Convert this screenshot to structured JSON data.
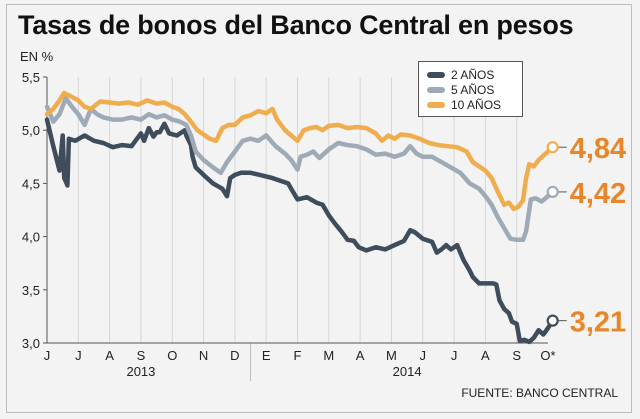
{
  "title": "Tasas de bonos del Banco Central en pesos",
  "unit_label": "EN %",
  "source": "FUENTE: BANCO CENTRAL",
  "chart_data": {
    "type": "line",
    "title": "Tasas de bonos del Banco Central en pesos",
    "ylabel": "EN %",
    "ylim": [
      3.0,
      5.5
    ],
    "yticks": [
      "5,5",
      "5,0",
      "4,5",
      "4,0",
      "3,5",
      "3,0"
    ],
    "ytick_values": [
      5.5,
      5.0,
      4.5,
      4.0,
      3.5,
      3.0
    ],
    "xticks": [
      "J",
      "J",
      "A",
      "S",
      "O",
      "N",
      "D",
      "E",
      "F",
      "M",
      "A",
      "M",
      "J",
      "J",
      "A",
      "S",
      "O*"
    ],
    "year_labels": [
      {
        "label": "2013",
        "from": 0,
        "to": 6
      },
      {
        "label": "2014",
        "from": 7,
        "to": 16
      }
    ],
    "grid": "vertical",
    "legend_position": "top-right",
    "series": [
      {
        "name": "2 AÑOS",
        "color": "#3e4c5b",
        "end_label": "3,21",
        "points": [
          [
            0.0,
            5.1
          ],
          [
            0.2,
            4.85
          ],
          [
            0.4,
            4.62
          ],
          [
            0.5,
            4.95
          ],
          [
            0.55,
            4.55
          ],
          [
            0.6,
            4.52
          ],
          [
            0.65,
            4.48
          ],
          [
            0.7,
            4.92
          ],
          [
            0.9,
            4.9
          ],
          [
            1.2,
            4.95
          ],
          [
            1.5,
            4.9
          ],
          [
            1.8,
            4.88
          ],
          [
            2.1,
            4.84
          ],
          [
            2.4,
            4.86
          ],
          [
            2.7,
            4.85
          ],
          [
            3.0,
            4.97
          ],
          [
            3.1,
            4.9
          ],
          [
            3.25,
            5.02
          ],
          [
            3.4,
            4.94
          ],
          [
            3.5,
            4.98
          ],
          [
            3.6,
            4.98
          ],
          [
            3.75,
            5.06
          ],
          [
            3.9,
            4.97
          ],
          [
            4.15,
            4.95
          ],
          [
            4.4,
            5.0
          ],
          [
            4.45,
            4.95
          ],
          [
            4.6,
            4.86
          ],
          [
            4.65,
            4.75
          ],
          [
            4.75,
            4.65
          ],
          [
            5.0,
            4.58
          ],
          [
            5.3,
            4.5
          ],
          [
            5.6,
            4.45
          ],
          [
            5.75,
            4.38
          ],
          [
            5.85,
            4.55
          ],
          [
            6.0,
            4.58
          ],
          [
            6.2,
            4.6
          ],
          [
            6.5,
            4.6
          ],
          [
            6.8,
            4.58
          ],
          [
            7.2,
            4.55
          ],
          [
            7.5,
            4.52
          ],
          [
            7.7,
            4.5
          ],
          [
            7.8,
            4.45
          ],
          [
            8.0,
            4.35
          ],
          [
            8.3,
            4.37
          ],
          [
            8.6,
            4.32
          ],
          [
            8.8,
            4.3
          ],
          [
            9.0,
            4.2
          ],
          [
            9.2,
            4.12
          ],
          [
            9.4,
            4.05
          ],
          [
            9.6,
            3.97
          ],
          [
            9.8,
            3.96
          ],
          [
            9.95,
            3.9
          ],
          [
            10.2,
            3.87
          ],
          [
            10.5,
            3.9
          ],
          [
            10.8,
            3.88
          ],
          [
            11.1,
            3.92
          ],
          [
            11.4,
            3.96
          ],
          [
            11.6,
            4.06
          ],
          [
            11.75,
            4.04
          ],
          [
            12.0,
            3.98
          ],
          [
            12.3,
            3.95
          ],
          [
            12.45,
            3.85
          ],
          [
            12.6,
            3.88
          ],
          [
            12.75,
            3.92
          ],
          [
            12.9,
            3.88
          ],
          [
            13.1,
            3.92
          ],
          [
            13.3,
            3.78
          ],
          [
            13.5,
            3.68
          ],
          [
            13.6,
            3.62
          ],
          [
            13.8,
            3.56
          ],
          [
            14.0,
            3.56
          ],
          [
            14.25,
            3.56
          ],
          [
            14.35,
            3.55
          ],
          [
            14.45,
            3.4
          ],
          [
            14.6,
            3.32
          ],
          [
            14.75,
            3.28
          ],
          [
            14.85,
            3.2
          ],
          [
            15.0,
            3.18
          ],
          [
            15.1,
            3.02
          ],
          [
            15.25,
            3.03
          ],
          [
            15.4,
            3.01
          ],
          [
            15.55,
            3.05
          ],
          [
            15.7,
            3.12
          ],
          [
            15.85,
            3.08
          ],
          [
            16.0,
            3.14
          ],
          [
            16.15,
            3.21
          ]
        ]
      },
      {
        "name": "5 AÑOS",
        "color": "#9eaab6",
        "end_label": "4,42",
        "points": [
          [
            0.0,
            5.22
          ],
          [
            0.2,
            5.08
          ],
          [
            0.4,
            5.15
          ],
          [
            0.6,
            5.3
          ],
          [
            0.8,
            5.22
          ],
          [
            1.0,
            5.15
          ],
          [
            1.2,
            5.05
          ],
          [
            1.4,
            5.2
          ],
          [
            1.6,
            5.15
          ],
          [
            1.8,
            5.12
          ],
          [
            2.1,
            5.1
          ],
          [
            2.4,
            5.1
          ],
          [
            2.7,
            5.12
          ],
          [
            3.0,
            5.1
          ],
          [
            3.25,
            5.15
          ],
          [
            3.5,
            5.12
          ],
          [
            3.75,
            5.14
          ],
          [
            4.0,
            5.1
          ],
          [
            4.25,
            5.08
          ],
          [
            4.45,
            5.05
          ],
          [
            4.6,
            4.95
          ],
          [
            4.75,
            4.8
          ],
          [
            5.0,
            4.72
          ],
          [
            5.3,
            4.65
          ],
          [
            5.55,
            4.6
          ],
          [
            5.75,
            4.7
          ],
          [
            6.0,
            4.8
          ],
          [
            6.25,
            4.9
          ],
          [
            6.5,
            4.92
          ],
          [
            6.75,
            4.9
          ],
          [
            7.0,
            4.95
          ],
          [
            7.3,
            4.85
          ],
          [
            7.6,
            4.78
          ],
          [
            7.8,
            4.72
          ],
          [
            8.0,
            4.63
          ],
          [
            8.1,
            4.75
          ],
          [
            8.3,
            4.77
          ],
          [
            8.5,
            4.8
          ],
          [
            8.7,
            4.74
          ],
          [
            9.0,
            4.82
          ],
          [
            9.3,
            4.88
          ],
          [
            9.6,
            4.86
          ],
          [
            9.9,
            4.85
          ],
          [
            10.2,
            4.82
          ],
          [
            10.5,
            4.77
          ],
          [
            10.8,
            4.78
          ],
          [
            11.1,
            4.75
          ],
          [
            11.4,
            4.78
          ],
          [
            11.6,
            4.85
          ],
          [
            11.8,
            4.78
          ],
          [
            12.0,
            4.75
          ],
          [
            12.3,
            4.75
          ],
          [
            12.6,
            4.7
          ],
          [
            12.9,
            4.65
          ],
          [
            13.2,
            4.6
          ],
          [
            13.5,
            4.5
          ],
          [
            13.8,
            4.45
          ],
          [
            14.0,
            4.38
          ],
          [
            14.2,
            4.3
          ],
          [
            14.4,
            4.18
          ],
          [
            14.6,
            4.08
          ],
          [
            14.8,
            3.98
          ],
          [
            15.0,
            3.97
          ],
          [
            15.2,
            3.97
          ],
          [
            15.3,
            4.05
          ],
          [
            15.45,
            4.35
          ],
          [
            15.6,
            4.36
          ],
          [
            15.8,
            4.33
          ],
          [
            16.0,
            4.38
          ],
          [
            16.15,
            4.42
          ]
        ]
      },
      {
        "name": "10 AÑOS",
        "color": "#f0ad4e",
        "end_label": "4,84",
        "points": [
          [
            0.0,
            5.15
          ],
          [
            0.2,
            5.2
          ],
          [
            0.4,
            5.28
          ],
          [
            0.55,
            5.35
          ],
          [
            0.75,
            5.32
          ],
          [
            1.0,
            5.28
          ],
          [
            1.2,
            5.22
          ],
          [
            1.4,
            5.2
          ],
          [
            1.7,
            5.27
          ],
          [
            2.0,
            5.26
          ],
          [
            2.3,
            5.25
          ],
          [
            2.6,
            5.26
          ],
          [
            2.9,
            5.24
          ],
          [
            3.2,
            5.28
          ],
          [
            3.5,
            5.25
          ],
          [
            3.75,
            5.26
          ],
          [
            4.0,
            5.22
          ],
          [
            4.2,
            5.2
          ],
          [
            4.4,
            5.15
          ],
          [
            4.6,
            5.08
          ],
          [
            4.8,
            5.0
          ],
          [
            5.0,
            4.96
          ],
          [
            5.2,
            4.92
          ],
          [
            5.4,
            4.9
          ],
          [
            5.6,
            5.02
          ],
          [
            5.8,
            5.05
          ],
          [
            6.0,
            5.05
          ],
          [
            6.25,
            5.12
          ],
          [
            6.5,
            5.14
          ],
          [
            6.75,
            5.18
          ],
          [
            7.0,
            5.16
          ],
          [
            7.2,
            5.2
          ],
          [
            7.35,
            5.1
          ],
          [
            7.6,
            5.0
          ],
          [
            7.8,
            4.95
          ],
          [
            8.0,
            4.9
          ],
          [
            8.2,
            5.0
          ],
          [
            8.4,
            5.02
          ],
          [
            8.6,
            5.03
          ],
          [
            8.8,
            5.0
          ],
          [
            9.0,
            5.04
          ],
          [
            9.3,
            5.05
          ],
          [
            9.6,
            5.02
          ],
          [
            9.9,
            5.03
          ],
          [
            10.2,
            5.02
          ],
          [
            10.5,
            4.97
          ],
          [
            10.7,
            4.9
          ],
          [
            10.9,
            4.95
          ],
          [
            11.1,
            4.92
          ],
          [
            11.3,
            4.96
          ],
          [
            11.6,
            4.95
          ],
          [
            11.9,
            4.92
          ],
          [
            12.2,
            4.88
          ],
          [
            12.5,
            4.86
          ],
          [
            12.8,
            4.85
          ],
          [
            13.1,
            4.84
          ],
          [
            13.4,
            4.8
          ],
          [
            13.6,
            4.7
          ],
          [
            13.8,
            4.66
          ],
          [
            14.0,
            4.62
          ],
          [
            14.2,
            4.55
          ],
          [
            14.4,
            4.42
          ],
          [
            14.6,
            4.3
          ],
          [
            14.75,
            4.32
          ],
          [
            14.9,
            4.26
          ],
          [
            15.05,
            4.28
          ],
          [
            15.2,
            4.34
          ],
          [
            15.3,
            4.55
          ],
          [
            15.4,
            4.68
          ],
          [
            15.55,
            4.66
          ],
          [
            15.7,
            4.72
          ],
          [
            15.85,
            4.76
          ],
          [
            16.0,
            4.8
          ],
          [
            16.15,
            4.84
          ]
        ]
      }
    ]
  }
}
